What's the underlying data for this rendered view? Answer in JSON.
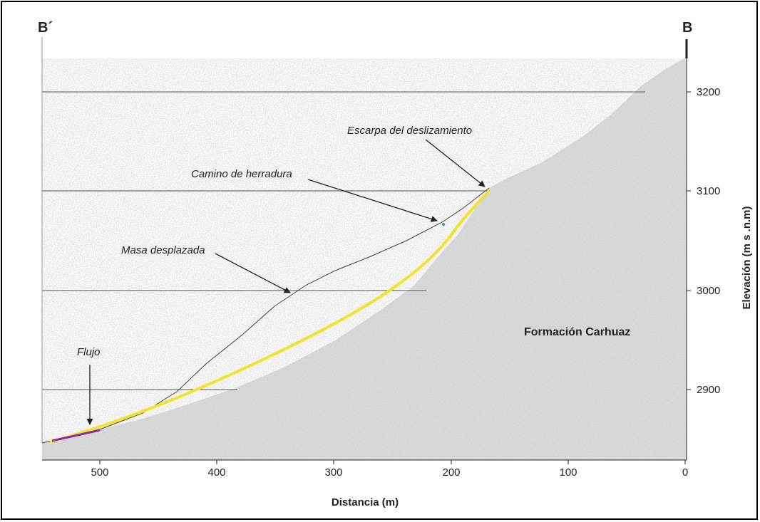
{
  "section": {
    "left_label": "B´",
    "right_label": "B"
  },
  "axes": {
    "xlabel": "Distancia (m)",
    "ylabel": "Elevación (m s .n.m)",
    "x_ticks": [
      "500",
      "400",
      "300",
      "200",
      "100",
      "0"
    ],
    "y_ticks": [
      "3200",
      "3100",
      "3000",
      "2900"
    ],
    "x_range": [
      550,
      0
    ],
    "y_range": [
      2830,
      3235
    ],
    "grid": "horizontal"
  },
  "annotations": {
    "scarp": "Escarpa del deslizamiento",
    "trail": "Camino de herradura",
    "mass": "Masa desplazada",
    "flow": "Flujo",
    "formation": "Formación Carhuaz"
  },
  "colors": {
    "rock": "#d9d9d9",
    "slip_surface": "#f2e32e",
    "flow": "#8e2aa8",
    "trail_marker": "#2aa876",
    "line": "#333333"
  }
}
